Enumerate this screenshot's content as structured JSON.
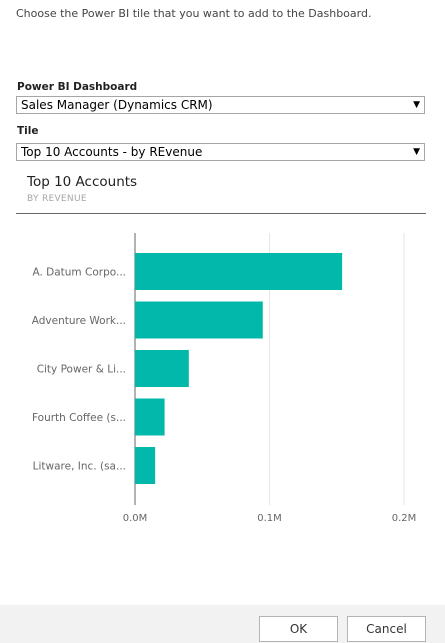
{
  "dialog": {
    "instruction": "Choose the Power BI tile that you want to add to the Dashboard.",
    "dashboard_label": "Power BI Dashboard",
    "dashboard_value": "Sales Manager (Dynamics CRM)",
    "tile_label": "Tile",
    "tile_value": "Top 10 Accounts - by REvenue",
    "dropdown_arrow": "▼"
  },
  "tile": {
    "title": "Top 10 Accounts",
    "subtitle": "BY REVENUE"
  },
  "colors": {
    "bar": "#01b8aa",
    "axis": "#666666",
    "grid": "#e6e6e6"
  },
  "chart_data": {
    "type": "bar",
    "orientation": "horizontal",
    "categories": [
      "A. Datum Corpo...",
      "Adventure Work...",
      "City Power & Li...",
      "Fourth Coffee (s...",
      "Litware, Inc. (sa..."
    ],
    "values": [
      0.154,
      0.095,
      0.04,
      0.022,
      0.015
    ],
    "xlim": [
      0,
      0.2
    ],
    "xticks": [
      "0.0M",
      "0.1M",
      "0.2M"
    ],
    "xtick_values": [
      0,
      0.1,
      0.2
    ],
    "grid": true
  },
  "footer": {
    "ok_label": "OK",
    "cancel_label": "Cancel"
  }
}
